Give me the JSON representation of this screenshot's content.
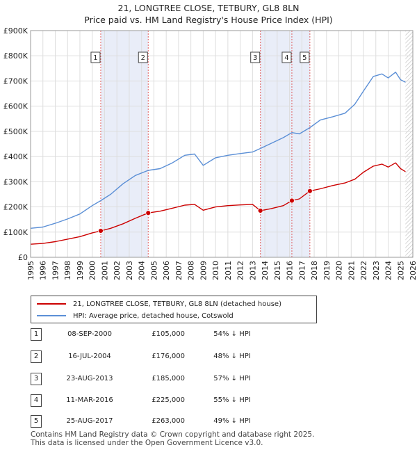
{
  "chart_data": {
    "type": "line",
    "title": "21, LONGTREE CLOSE, TETBURY, GL8 8LN",
    "subtitle": "Price paid vs. HM Land Registry's House Price Index (HPI)",
    "xlim": [
      1995,
      2026
    ],
    "ylim": [
      0,
      900000
    ],
    "x_ticks": [
      "1995",
      "1996",
      "1997",
      "1998",
      "1999",
      "2000",
      "2001",
      "2002",
      "2003",
      "2004",
      "2005",
      "2006",
      "2007",
      "2008",
      "2009",
      "2010",
      "2011",
      "2012",
      "2013",
      "2014",
      "2015",
      "2016",
      "2017",
      "2018",
      "2019",
      "2020",
      "2021",
      "2022",
      "2023",
      "2024",
      "2025",
      "2026"
    ],
    "y_ticks": [
      {
        "value": 0,
        "label": "£0"
      },
      {
        "value": 100000,
        "label": "£100K"
      },
      {
        "value": 200000,
        "label": "£200K"
      },
      {
        "value": 300000,
        "label": "£300K"
      },
      {
        "value": 400000,
        "label": "£400K"
      },
      {
        "value": 500000,
        "label": "£500K"
      },
      {
        "value": 600000,
        "label": "£600K"
      },
      {
        "value": 700000,
        "label": "£700K"
      },
      {
        "value": 800000,
        "label": "£800K"
      },
      {
        "value": 900000,
        "label": "£900K"
      }
    ],
    "grid": true,
    "shaded_periods": [
      [
        2000.69,
        2004.54
      ],
      [
        2013.64,
        2016.19
      ],
      [
        2016.19,
        2017.65
      ]
    ],
    "hatched_from": 2025.4,
    "series": [
      {
        "name": "21, LONGTREE CLOSE, TETBURY, GL8 8LN (detached house)",
        "color": "#cc0000",
        "points": [
          [
            1995.0,
            52000
          ],
          [
            1996.0,
            55000
          ],
          [
            1997.0,
            62000
          ],
          [
            1998.0,
            72000
          ],
          [
            1999.0,
            82000
          ],
          [
            2000.0,
            97000
          ],
          [
            2000.69,
            105000
          ],
          [
            2001.5,
            115000
          ],
          [
            2002.5,
            133000
          ],
          [
            2003.5,
            155000
          ],
          [
            2004.54,
            176000
          ],
          [
            2005.5,
            183000
          ],
          [
            2006.5,
            195000
          ],
          [
            2007.5,
            207000
          ],
          [
            2008.3,
            210000
          ],
          [
            2009.0,
            187000
          ],
          [
            2010.0,
            200000
          ],
          [
            2011.0,
            205000
          ],
          [
            2012.0,
            208000
          ],
          [
            2013.0,
            210000
          ],
          [
            2013.64,
            185000
          ],
          [
            2014.5,
            193000
          ],
          [
            2015.5,
            205000
          ],
          [
            2016.19,
            225000
          ],
          [
            2016.8,
            232000
          ],
          [
            2017.65,
            263000
          ],
          [
            2018.5,
            272000
          ],
          [
            2019.5,
            285000
          ],
          [
            2020.5,
            295000
          ],
          [
            2021.3,
            310000
          ],
          [
            2022.0,
            338000
          ],
          [
            2022.8,
            362000
          ],
          [
            2023.5,
            370000
          ],
          [
            2024.0,
            358000
          ],
          [
            2024.6,
            375000
          ],
          [
            2025.0,
            352000
          ],
          [
            2025.4,
            340000
          ]
        ]
      },
      {
        "name": "HPI: Average price, detached house, Cotswold",
        "color": "#5b8fd6",
        "points": [
          [
            1995.0,
            115000
          ],
          [
            1996.0,
            120000
          ],
          [
            1997.0,
            135000
          ],
          [
            1998.0,
            152000
          ],
          [
            1999.0,
            172000
          ],
          [
            2000.0,
            205000
          ],
          [
            2000.69,
            225000
          ],
          [
            2001.5,
            250000
          ],
          [
            2002.5,
            292000
          ],
          [
            2003.5,
            325000
          ],
          [
            2004.54,
            345000
          ],
          [
            2005.5,
            352000
          ],
          [
            2006.5,
            375000
          ],
          [
            2007.5,
            405000
          ],
          [
            2008.3,
            410000
          ],
          [
            2009.0,
            365000
          ],
          [
            2010.0,
            395000
          ],
          [
            2011.0,
            405000
          ],
          [
            2012.0,
            412000
          ],
          [
            2013.0,
            418000
          ],
          [
            2013.64,
            432000
          ],
          [
            2014.5,
            452000
          ],
          [
            2015.5,
            475000
          ],
          [
            2016.19,
            495000
          ],
          [
            2016.8,
            490000
          ],
          [
            2017.65,
            515000
          ],
          [
            2018.5,
            545000
          ],
          [
            2019.5,
            558000
          ],
          [
            2020.5,
            572000
          ],
          [
            2021.3,
            608000
          ],
          [
            2022.0,
            660000
          ],
          [
            2022.8,
            718000
          ],
          [
            2023.5,
            728000
          ],
          [
            2024.0,
            712000
          ],
          [
            2024.6,
            735000
          ],
          [
            2025.0,
            705000
          ],
          [
            2025.4,
            695000
          ]
        ]
      }
    ],
    "annotations": [
      {
        "label": "1",
        "x": 2000.69
      },
      {
        "label": "2",
        "x": 2004.54
      },
      {
        "label": "3",
        "x": 2013.64
      },
      {
        "label": "4",
        "x": 2016.19
      },
      {
        "label": "5",
        "x": 2017.65
      }
    ],
    "sale_points": [
      {
        "x": 2000.69,
        "y": 105000
      },
      {
        "x": 2004.54,
        "y": 176000
      },
      {
        "x": 2013.64,
        "y": 185000
      },
      {
        "x": 2016.19,
        "y": 225000
      },
      {
        "x": 2017.65,
        "y": 263000
      }
    ]
  },
  "legend": {
    "property": "21, LONGTREE CLOSE, TETBURY, GL8 8LN (detached house)",
    "hpi": "HPI: Average price, detached house, Cotswold",
    "property_color": "#cc0000",
    "hpi_color": "#5b8fd6"
  },
  "sales": [
    {
      "num": "1",
      "date": "08-SEP-2000",
      "price": "£105,000",
      "hpi": "54% ↓ HPI"
    },
    {
      "num": "2",
      "date": "16-JUL-2004",
      "price": "£176,000",
      "hpi": "48% ↓ HPI"
    },
    {
      "num": "3",
      "date": "23-AUG-2013",
      "price": "£185,000",
      "hpi": "57% ↓ HPI"
    },
    {
      "num": "4",
      "date": "11-MAR-2016",
      "price": "£225,000",
      "hpi": "55% ↓ HPI"
    },
    {
      "num": "5",
      "date": "25-AUG-2017",
      "price": "£263,000",
      "hpi": "49% ↓ HPI"
    }
  ],
  "footer": {
    "line1": "Contains HM Land Registry data © Crown copyright and database right 2025.",
    "line2": "This data is licensed under the Open Government Licence v3.0."
  }
}
